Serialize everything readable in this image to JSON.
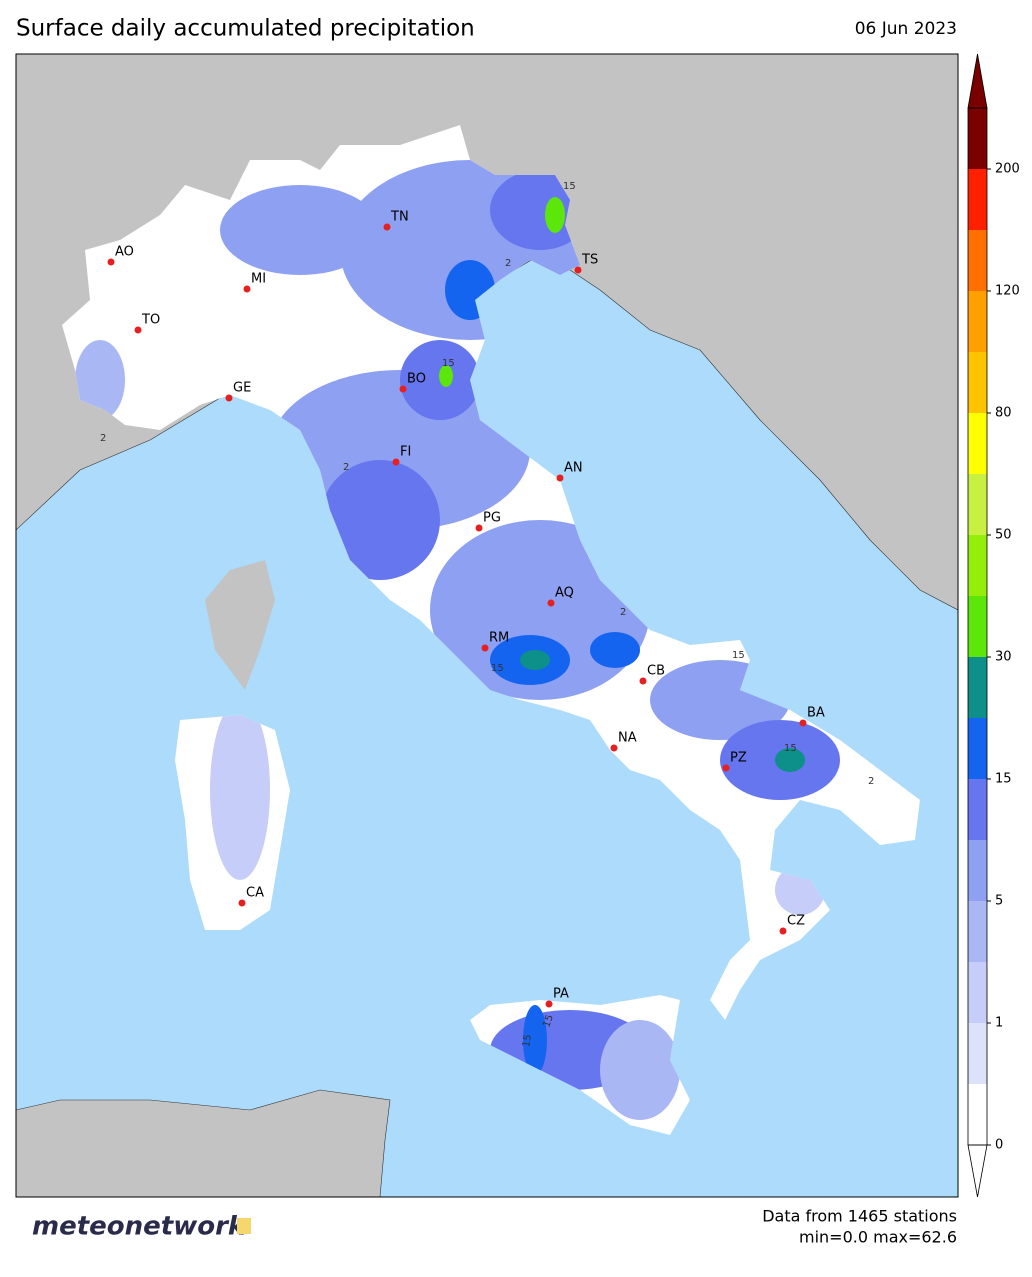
{
  "header": {
    "title": "Surface daily accumulated precipitation",
    "date": "06 Jun 2023"
  },
  "cities": [
    "AO",
    "MI",
    "TO",
    "TN",
    "TS",
    "GE",
    "BO",
    "FI",
    "AN",
    "PG",
    "AQ",
    "RM",
    "CB",
    "BA",
    "NA",
    "PZ",
    "CZ",
    "CA",
    "PA"
  ],
  "contour_labels": [
    "15",
    "2",
    "15",
    "2",
    "15",
    "2",
    "15",
    "15",
    "2",
    "15",
    "15",
    "2"
  ],
  "colorbar": {
    "levels": [
      0,
      0.5,
      1,
      3,
      5,
      10,
      15,
      20,
      30,
      40,
      50,
      65,
      80,
      100,
      120,
      160,
      200,
      250
    ],
    "colors": [
      "#ffffff",
      "#dde2fb",
      "#c5cdf8",
      "#a9b7f5",
      "#8da0f2",
      "#6676ee",
      "#1464f0",
      "#0d8f8a",
      "#5ce60a",
      "#94ee0a",
      "#c8f040",
      "#ffff00",
      "#ffc400",
      "#ffa000",
      "#ff7000",
      "#ff2000",
      "#7a0000"
    ],
    "ticks": [
      0,
      1,
      5,
      15,
      30,
      50,
      80,
      120,
      200
    ]
  },
  "footer": {
    "logo": "meteonetwork",
    "stations": "Data from 1465 stations",
    "range": "min=0.0 max=62.6"
  }
}
